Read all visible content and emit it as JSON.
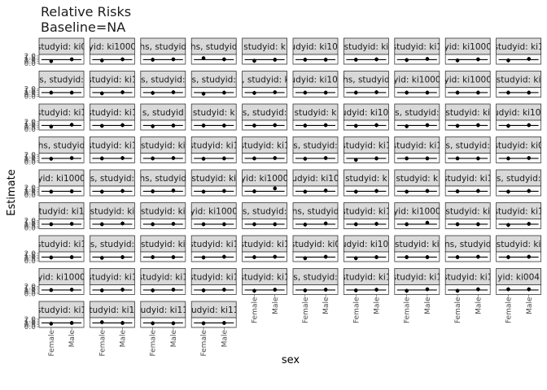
{
  "chart_data": {
    "type": "scatter",
    "title_line1": "Relative Risks",
    "title_line2": "Baseline=NA",
    "xlabel": "sex",
    "ylabel": "Estimate",
    "categories": [
      "Female",
      "Male"
    ],
    "y_ticks": [
      "0.0",
      "0.5",
      "1.0",
      "1.5",
      "2.0"
    ],
    "ylim": [
      0,
      2.2
    ],
    "ncol": 10,
    "nrow": 9,
    "grid": true,
    "colors": {
      "strip_fill": "#d9d9d9",
      "panel_border": "#333333",
      "grid": "#ebebeb",
      "point": "#000000"
    },
    "panels": [
      {
        "strip": "studyid: ki0",
        "values": [
          0.6,
          1.1
        ]
      },
      {
        "strip": "yid: ki1000",
        "values": [
          0.8,
          1.1
        ]
      },
      {
        "strip": "hs, studyid",
        "values": [
          1.0,
          1.1
        ]
      },
      {
        "strip": "hs, studyid",
        "values": [
          1.4,
          1.1
        ]
      },
      {
        "strip": "studyid: k",
        "values": [
          0.7,
          1.0
        ]
      },
      {
        "strip": "studyid: ki1003",
        "values": [
          1.0,
          1.0
        ]
      },
      {
        "strip": "studyid: ki",
        "values": [
          1.0,
          1.1
        ]
      },
      {
        "strip": "studyid: ki1",
        "values": [
          0.9,
          1.2
        ]
      },
      {
        "strip": "yid: ki1000",
        "values": [
          0.8,
          1.1
        ]
      },
      {
        "strip": "studyid: ki1",
        "values": [
          0.8,
          1.2
        ]
      },
      {
        "strip": "s, studyid:",
        "values": [
          1.0,
          1.0
        ]
      },
      {
        "strip": "studyid: ki1",
        "values": [
          0.8,
          1.1
        ]
      },
      {
        "strip": "s, studyid:",
        "values": [
          0.9,
          1.1
        ]
      },
      {
        "strip": "s, studyid:",
        "values": [
          0.7,
          1.0
        ]
      },
      {
        "strip": "s, studyid: ki",
        "values": [
          0.9,
          1.1
        ]
      },
      {
        "strip": "studyid: ki1000",
        "values": [
          1.0,
          1.0
        ]
      },
      {
        "strip": "hs, studyid",
        "values": [
          1.0,
          1.1
        ]
      },
      {
        "strip": "yid: ki1000",
        "values": [
          1.0,
          1.0
        ]
      },
      {
        "strip": "yid: ki1000",
        "values": [
          1.0,
          1.0
        ]
      },
      {
        "strip": "studyid: ki",
        "values": [
          1.0,
          1.0
        ]
      },
      {
        "strip": "studyid: ki1",
        "values": [
          0.7,
          1.2
        ]
      },
      {
        "strip": "studyid: ki1",
        "values": [
          0.9,
          1.1
        ]
      },
      {
        "strip": "s, studyid",
        "values": [
          0.8,
          1.0
        ]
      },
      {
        "strip": "studyid: k",
        "values": [
          1.0,
          1.0
        ]
      },
      {
        "strip": "s, studyid:",
        "values": [
          1.0,
          1.1
        ]
      },
      {
        "strip": "studyid: k",
        "values": [
          1.0,
          1.1
        ]
      },
      {
        "strip": "studyid: ki1000",
        "values": [
          0.9,
          1.1
        ]
      },
      {
        "strip": "s, studyid:",
        "values": [
          0.8,
          1.1
        ]
      },
      {
        "strip": "studyid: ki",
        "values": [
          0.9,
          1.1
        ]
      },
      {
        "strip": "studyid: ki1000",
        "values": [
          0.9,
          1.1
        ]
      },
      {
        "strip": "hs, studyid",
        "values": [
          0.9,
          1.1
        ]
      },
      {
        "strip": "studyid: ki1",
        "values": [
          1.0,
          1.1
        ]
      },
      {
        "strip": "studyid: ki",
        "values": [
          1.0,
          1.1
        ]
      },
      {
        "strip": "studyid: ki1",
        "values": [
          0.9,
          1.0
        ]
      },
      {
        "strip": "studyid: ki1",
        "values": [
          1.0,
          1.1
        ]
      },
      {
        "strip": "s, studyid:",
        "values": [
          0.9,
          1.1
        ]
      },
      {
        "strip": "studyid: ki1",
        "values": [
          0.6,
          1.0
        ]
      },
      {
        "strip": "studyid: ki1",
        "values": [
          1.0,
          1.0
        ]
      },
      {
        "strip": "s, studyid:",
        "values": [
          1.0,
          1.0
        ]
      },
      {
        "strip": "studyid: ki0",
        "values": [
          1.0,
          1.1
        ]
      },
      {
        "strip": "yid: ki1000",
        "values": [
          0.9,
          1.0
        ]
      },
      {
        "strip": "s, studyid:",
        "values": [
          0.9,
          1.1
        ]
      },
      {
        "strip": "hs, studyid",
        "values": [
          1.0,
          1.2
        ]
      },
      {
        "strip": "studyid: ki",
        "values": [
          0.9,
          1.1
        ]
      },
      {
        "strip": "yid: ki1000",
        "values": [
          1.0,
          1.8
        ]
      },
      {
        "strip": "udyid: ki10",
        "values": [
          0.9,
          1.2
        ]
      },
      {
        "strip": "studyid: k",
        "values": [
          0.9,
          1.1
        ]
      },
      {
        "strip": "studyid: k",
        "values": [
          0.9,
          1.1
        ]
      },
      {
        "strip": "studyid: ki1",
        "values": [
          1.0,
          1.1
        ]
      },
      {
        "strip": "s, studyid:",
        "values": [
          0.9,
          1.1
        ]
      },
      {
        "strip": "tudyid: ki1",
        "values": [
          1.0,
          1.1
        ]
      },
      {
        "strip": "studyid: ki",
        "values": [
          1.0,
          1.2
        ]
      },
      {
        "strip": "studyid: ki",
        "values": [
          1.0,
          1.1
        ]
      },
      {
        "strip": "yid: ki1000",
        "values": [
          1.0,
          1.0
        ]
      },
      {
        "strip": "s, studyid:",
        "values": [
          1.0,
          1.0
        ]
      },
      {
        "strip": "ns, studyid",
        "values": [
          0.9,
          1.2
        ]
      },
      {
        "strip": "studyid: ki1",
        "values": [
          1.0,
          1.1
        ]
      },
      {
        "strip": "yid: ki1000",
        "values": [
          1.0,
          1.4
        ]
      },
      {
        "strip": "studyid: ki",
        "values": [
          1.0,
          1.0
        ]
      },
      {
        "strip": "studyid: ki1",
        "values": [
          0.8,
          1.1
        ]
      },
      {
        "strip": "studyid: ki1",
        "values": [
          0.9,
          1.0
        ]
      },
      {
        "strip": "s, studyid:",
        "values": [
          0.8,
          1.0
        ]
      },
      {
        "strip": "studyid: ki",
        "values": [
          1.0,
          1.0
        ]
      },
      {
        "strip": "studyid: ki1",
        "values": [
          0.9,
          1.1
        ]
      },
      {
        "strip": "studyid: ki1",
        "values": [
          1.0,
          1.1
        ]
      },
      {
        "strip": "studyid: ki0",
        "values": [
          0.7,
          1.1
        ]
      },
      {
        "strip": "studyid: ki1000",
        "values": [
          0.7,
          1.0
        ]
      },
      {
        "strip": "studyid: ki",
        "values": [
          1.0,
          1.0
        ]
      },
      {
        "strip": "ns, studyid",
        "values": [
          1.0,
          1.1
        ]
      },
      {
        "strip": "studyid: ki",
        "values": [
          1.0,
          1.1
        ]
      },
      {
        "strip": "yid: ki1000",
        "values": [
          1.0,
          1.1
        ]
      },
      {
        "strip": "studyid: ki1",
        "values": [
          0.9,
          1.1
        ]
      },
      {
        "strip": "studyid: ki1",
        "values": [
          0.9,
          1.1
        ]
      },
      {
        "strip": "studyid: ki1",
        "values": [
          0.9,
          1.1
        ]
      },
      {
        "strip": "studyid: ki1",
        "values": [
          0.8,
          1.1
        ]
      },
      {
        "strip": "s, studyid:",
        "values": [
          0.9,
          1.1
        ]
      },
      {
        "strip": "studyid: ki1",
        "values": [
          0.9,
          1.1
        ]
      },
      {
        "strip": "studyid: ki1",
        "values": [
          0.8,
          1.2
        ]
      },
      {
        "strip": "studyid: ki1",
        "values": [
          0.8,
          1.2
        ]
      },
      {
        "strip": "yid: ki004",
        "values": [
          1.2,
          1.2
        ]
      },
      {
        "strip": "studyid: ki1",
        "values": [
          0.8,
          1.0
        ]
      },
      {
        "strip": "studyid: ki11",
        "values": [
          1.2,
          1.0
        ]
      },
      {
        "strip": "studyid: ki112",
        "values": [
          0.9,
          0.9
        ]
      },
      {
        "strip": "studyid: ki113",
        "values": [
          0.9,
          1.0
        ]
      }
    ]
  }
}
